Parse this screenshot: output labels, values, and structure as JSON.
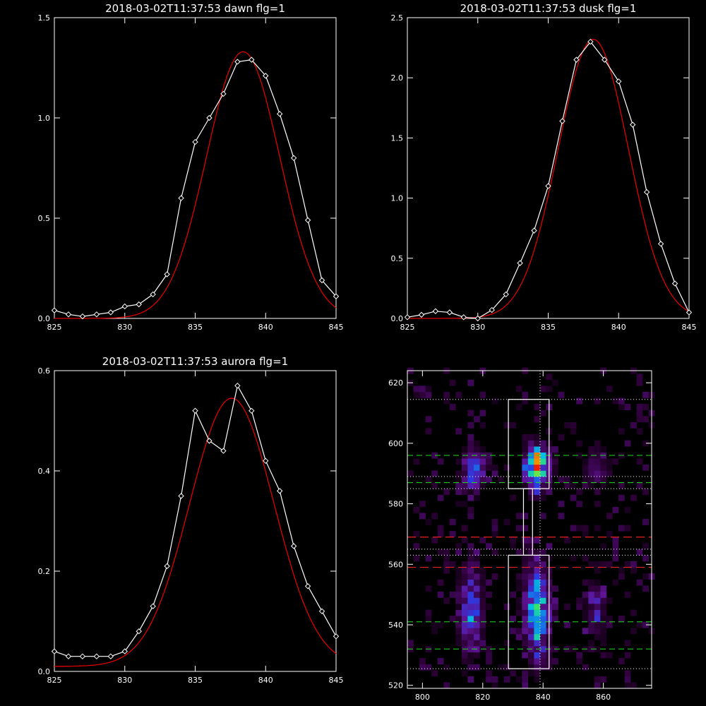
{
  "colors": {
    "background": "#000000",
    "axes": "#ffffff",
    "data_line": "#ffffff",
    "fit_line": "#dd0000",
    "guide_green": "#22dd22",
    "guide_red": "#ee2222",
    "guide_white": "#ffffff"
  },
  "chart_data": [
    {
      "type": "line",
      "title": "2018-03-02T11:37:53 dawn flg=1",
      "xlim": [
        825,
        845
      ],
      "ylim": [
        0,
        1.5
      ],
      "xticks": [
        "825",
        "830",
        "835",
        "840",
        "845"
      ],
      "yticks": [
        "0.0",
        "0.5",
        "1.0",
        "1.5"
      ],
      "series": [
        {
          "x": [
            825,
            826,
            827,
            828,
            829,
            830,
            831,
            832,
            833,
            834,
            835,
            836,
            837,
            838,
            839,
            840,
            841,
            842,
            843,
            844,
            845
          ],
          "y": [
            0.04,
            0.02,
            0.01,
            0.02,
            0.03,
            0.06,
            0.07,
            0.12,
            0.22,
            0.6,
            0.88,
            1.0,
            1.12,
            1.28,
            1.29,
            1.21,
            1.02,
            0.8,
            0.49,
            0.19,
            0.11
          ],
          "markers": "diamond"
        },
        {
          "fit": "gaussian",
          "amplitude": 1.33,
          "center": 838.4,
          "sigma": 2.6,
          "baseline": 0.0
        }
      ]
    },
    {
      "type": "line",
      "title": "2018-03-02T11:37:53 dusk flg=1",
      "xlim": [
        825,
        845
      ],
      "ylim": [
        0,
        2.5
      ],
      "xticks": [
        "825",
        "830",
        "835",
        "840",
        "845"
      ],
      "yticks": [
        "0.0",
        "0.5",
        "1.0",
        "1.5",
        "2.0",
        "2.5"
      ],
      "series": [
        {
          "x": [
            825,
            826,
            827,
            828,
            829,
            830,
            831,
            832,
            833,
            834,
            835,
            836,
            837,
            838,
            839,
            840,
            841,
            842,
            843,
            844,
            845
          ],
          "y": [
            0.01,
            0.03,
            0.06,
            0.05,
            0.01,
            0.0,
            0.07,
            0.2,
            0.46,
            0.73,
            1.1,
            1.64,
            2.15,
            2.3,
            2.15,
            1.97,
            1.61,
            1.05,
            0.62,
            0.29,
            0.05
          ],
          "markers": "diamond"
        },
        {
          "fit": "gaussian",
          "amplitude": 2.32,
          "center": 838.2,
          "sigma": 2.5,
          "baseline": 0.0
        }
      ]
    },
    {
      "type": "line",
      "title": "2018-03-02T11:37:53 aurora flg=1",
      "xlim": [
        825,
        845
      ],
      "ylim": [
        0,
        0.6
      ],
      "xticks": [
        "825",
        "830",
        "835",
        "840",
        "845"
      ],
      "yticks": [
        "0.0",
        "0.2",
        "0.4",
        "0.6"
      ],
      "series": [
        {
          "x": [
            825,
            826,
            827,
            828,
            829,
            830,
            831,
            832,
            833,
            834,
            835,
            836,
            837,
            838,
            839,
            840,
            841,
            842,
            843,
            844,
            845
          ],
          "y": [
            0.04,
            0.03,
            0.03,
            0.03,
            0.03,
            0.04,
            0.08,
            0.13,
            0.21,
            0.35,
            0.52,
            0.46,
            0.44,
            0.57,
            0.52,
            0.42,
            0.36,
            0.25,
            0.17,
            0.12,
            0.07
          ],
          "markers": "diamond"
        },
        {
          "fit": "gaussian",
          "amplitude": 0.535,
          "center": 837.6,
          "sigma": 3.0,
          "baseline": 0.01
        }
      ]
    },
    {
      "type": "heatmap",
      "title": "",
      "xlim": [
        795,
        876
      ],
      "ylim": [
        519,
        624
      ],
      "xticks": [
        "800",
        "820",
        "840",
        "860"
      ],
      "yticks": [
        "520",
        "540",
        "560",
        "580",
        "600",
        "620"
      ],
      "blobs": [
        {
          "x": 817,
          "y": 591,
          "sx": 2.6,
          "sy": 4.5,
          "amp": 0.45
        },
        {
          "x": 838,
          "y": 592,
          "sx": 2.8,
          "sy": 5.0,
          "amp": 0.7
        },
        {
          "x": 839,
          "y": 595,
          "sx": 1.2,
          "sy": 1.5,
          "amp": 0.3
        },
        {
          "x": 858,
          "y": 592,
          "sx": 2.6,
          "sy": 4.0,
          "amp": 0.22
        },
        {
          "x": 816,
          "y": 545,
          "sx": 2.6,
          "sy": 10.0,
          "amp": 0.4
        },
        {
          "x": 838,
          "y": 545,
          "sx": 3.0,
          "sy": 11.0,
          "amp": 0.55
        },
        {
          "x": 858,
          "y": 545,
          "sx": 2.6,
          "sy": 8.0,
          "amp": 0.2
        }
      ],
      "boxes": [
        {
          "x0": 828.5,
          "x1": 842,
          "y0": 585,
          "y1": 614.5
        },
        {
          "x0": 833.5,
          "x1": 836.5,
          "y0": 563,
          "y1": 585
        },
        {
          "x0": 828.5,
          "x1": 842,
          "y0": 525.5,
          "y1": 563
        }
      ],
      "vline_dotted": 839,
      "hlines_green": [
        596,
        587,
        541,
        532
      ],
      "hlines_red": [
        569,
        559
      ],
      "hlines_white_dotted": [
        614.5,
        589,
        585,
        565,
        563,
        525.5
      ]
    }
  ]
}
